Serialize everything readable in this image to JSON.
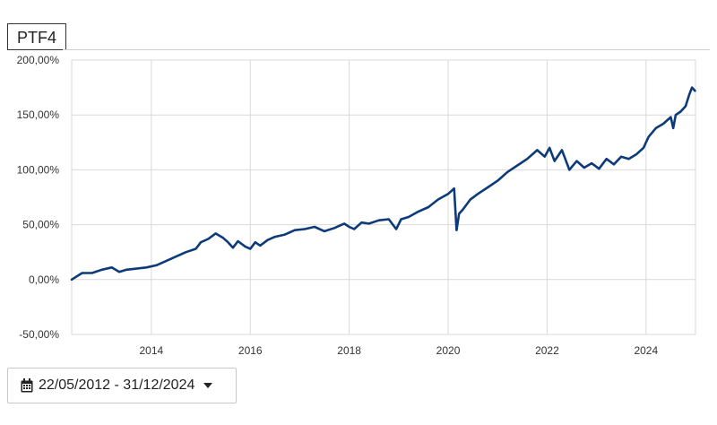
{
  "header": {
    "title": "PTF4"
  },
  "date_range": {
    "label": "22/05/2012 - 31/12/2024",
    "calendar_icon": "calendar-icon",
    "caret_icon": "caret-down-icon"
  },
  "colors": {
    "line": "#0d3b7a",
    "grid": "#d9d9d9",
    "axis_text": "#333333"
  },
  "chart_data": {
    "type": "line",
    "title": "",
    "xlabel": "",
    "ylabel": "",
    "xlim": [
      2012.39,
      2025.0
    ],
    "ylim": [
      -50,
      200
    ],
    "y_ticks": [
      -50,
      0,
      50,
      100,
      150,
      200
    ],
    "y_tick_labels": [
      "-50,00%",
      "0,00%",
      "50,00%",
      "100,00%",
      "150,00%",
      "200,00%"
    ],
    "x_ticks": [
      2014,
      2016,
      2018,
      2020,
      2022,
      2024
    ],
    "x_tick_labels": [
      "2014",
      "2016",
      "2018",
      "2020",
      "2022",
      "2024"
    ],
    "grid": true,
    "series": [
      {
        "values_unit": "percent",
        "x": [
          2012.39,
          2012.6,
          2012.8,
          2013.0,
          2013.2,
          2013.35,
          2013.5,
          2013.7,
          2013.9,
          2014.1,
          2014.3,
          2014.5,
          2014.7,
          2014.9,
          2015.0,
          2015.15,
          2015.3,
          2015.45,
          2015.55,
          2015.65,
          2015.75,
          2015.9,
          2016.0,
          2016.1,
          2016.2,
          2016.35,
          2016.5,
          2016.7,
          2016.9,
          2017.1,
          2017.3,
          2017.5,
          2017.7,
          2017.9,
          2018.0,
          2018.1,
          2018.25,
          2018.4,
          2018.6,
          2018.8,
          2018.95,
          2019.05,
          2019.2,
          2019.4,
          2019.6,
          2019.8,
          2020.0,
          2020.12,
          2020.17,
          2020.22,
          2020.3,
          2020.45,
          2020.6,
          2020.8,
          2021.0,
          2021.2,
          2021.4,
          2021.6,
          2021.8,
          2021.95,
          2022.05,
          2022.15,
          2022.3,
          2022.45,
          2022.6,
          2022.75,
          2022.9,
          2023.05,
          2023.2,
          2023.35,
          2023.5,
          2023.65,
          2023.8,
          2023.95,
          2024.05,
          2024.2,
          2024.35,
          2024.5,
          2024.55,
          2024.6,
          2024.7,
          2024.8,
          2024.87,
          2024.93,
          2024.99
        ],
        "values": [
          0,
          6,
          6,
          9,
          11,
          7,
          9,
          10,
          11,
          13,
          17,
          21,
          25,
          28,
          34,
          37,
          42,
          38,
          34,
          29,
          35,
          30,
          28,
          34,
          31,
          36,
          39,
          41,
          45,
          46,
          48,
          44,
          47,
          51,
          48,
          46,
          52,
          51,
          54,
          55,
          46,
          55,
          57,
          62,
          66,
          73,
          78,
          83,
          45,
          60,
          64,
          73,
          78,
          84,
          90,
          98,
          104,
          110,
          118,
          112,
          120,
          108,
          118,
          100,
          108,
          102,
          106,
          101,
          110,
          105,
          112,
          110,
          114,
          120,
          130,
          138,
          142,
          148,
          138,
          150,
          153,
          158,
          168,
          175,
          172
        ]
      }
    ]
  }
}
